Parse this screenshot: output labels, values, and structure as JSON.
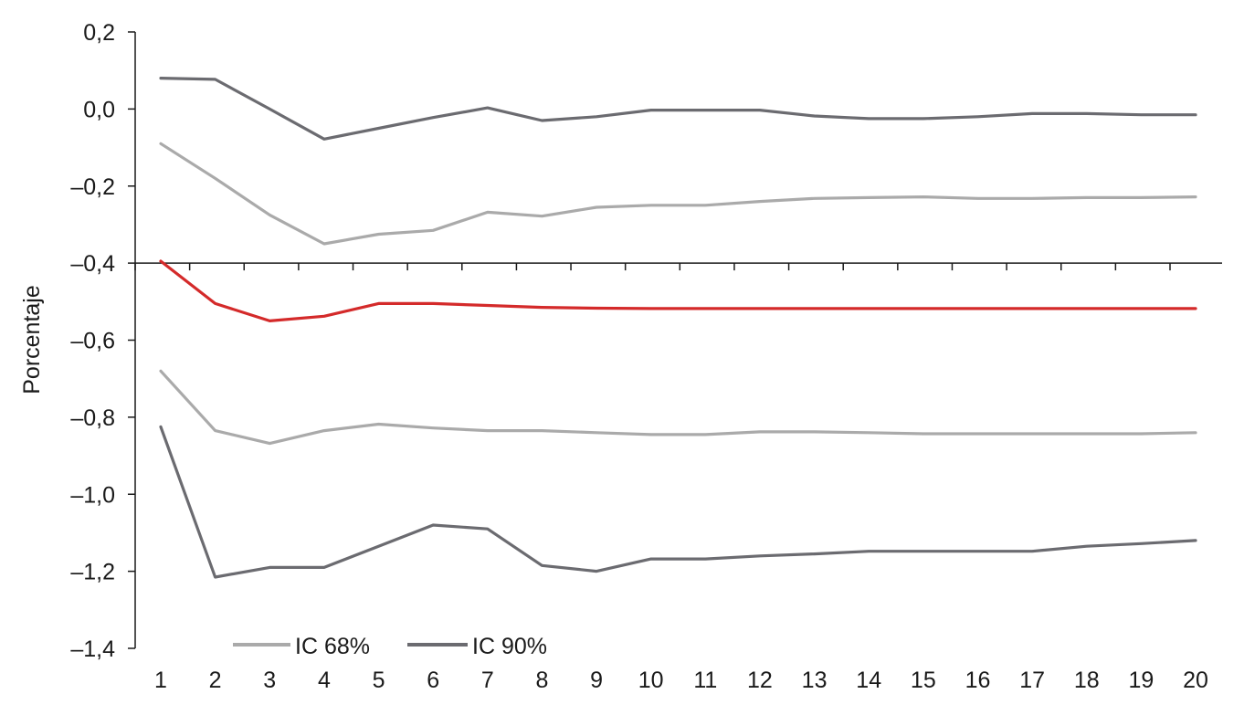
{
  "chart_data": {
    "type": "line",
    "title": "",
    "xlabel": "",
    "ylabel": "Porcentaje",
    "x": [
      1,
      2,
      3,
      4,
      5,
      6,
      7,
      8,
      9,
      10,
      11,
      12,
      13,
      14,
      15,
      16,
      17,
      18,
      19,
      20
    ],
    "x_tick_labels": [
      "1",
      "2",
      "3",
      "4",
      "5",
      "6",
      "7",
      "8",
      "9",
      "10",
      "11",
      "12",
      "13",
      "14",
      "15",
      "16",
      "17",
      "18",
      "19",
      "20"
    ],
    "ylim": [
      -1.4,
      0.2
    ],
    "y_ticks": [
      0.2,
      0.0,
      -0.2,
      -0.4,
      -0.6,
      -0.8,
      -1.0,
      -1.2,
      -1.4
    ],
    "y_tick_labels": [
      "0,2",
      "0,0",
      "–0,2",
      "–0,4",
      "–0,6",
      "–0,8",
      "–1,0",
      "–1,2",
      "–1,4"
    ],
    "x_axis_at_y": -0.4,
    "grid": false,
    "legend_position": "bottom-left",
    "legend": [
      {
        "label": "IC 68%",
        "color": "#aaaaaa"
      },
      {
        "label": "IC 90%",
        "color": "#6b6b70"
      }
    ],
    "series": [
      {
        "color": "#6b6b70",
        "values": [
          0.08,
          0.077,
          0.0,
          -0.078,
          -0.05,
          -0.022,
          0.003,
          -0.03,
          -0.02,
          -0.003,
          -0.003,
          -0.003,
          -0.018,
          -0.025,
          -0.025,
          -0.02,
          -0.012,
          -0.012,
          -0.015,
          -0.015
        ]
      },
      {
        "color": "#aaaaaa",
        "values": [
          -0.09,
          -0.18,
          -0.275,
          -0.35,
          -0.325,
          -0.315,
          -0.268,
          -0.278,
          -0.255,
          -0.25,
          -0.25,
          -0.24,
          -0.232,
          -0.23,
          -0.228,
          -0.232,
          -0.232,
          -0.23,
          -0.23,
          -0.228
        ]
      },
      {
        "color": "#d42a2a",
        "values": [
          -0.395,
          -0.505,
          -0.55,
          -0.538,
          -0.505,
          -0.505,
          -0.51,
          -0.515,
          -0.517,
          -0.518,
          -0.518,
          -0.518,
          -0.518,
          -0.518,
          -0.518,
          -0.518,
          -0.518,
          -0.518,
          -0.518,
          -0.518
        ]
      },
      {
        "color": "#aaaaaa",
        "values": [
          -0.68,
          -0.835,
          -0.868,
          -0.835,
          -0.818,
          -0.828,
          -0.835,
          -0.835,
          -0.84,
          -0.845,
          -0.845,
          -0.838,
          -0.838,
          -0.84,
          -0.843,
          -0.843,
          -0.843,
          -0.843,
          -0.843,
          -0.84
        ]
      },
      {
        "color": "#6b6b70",
        "values": [
          -0.825,
          -1.215,
          -1.19,
          -1.19,
          -1.135,
          -1.08,
          -1.09,
          -1.185,
          -1.2,
          -1.168,
          -1.168,
          -1.16,
          -1.155,
          -1.148,
          -1.148,
          -1.148,
          -1.148,
          -1.135,
          -1.128,
          -1.12
        ]
      }
    ]
  }
}
